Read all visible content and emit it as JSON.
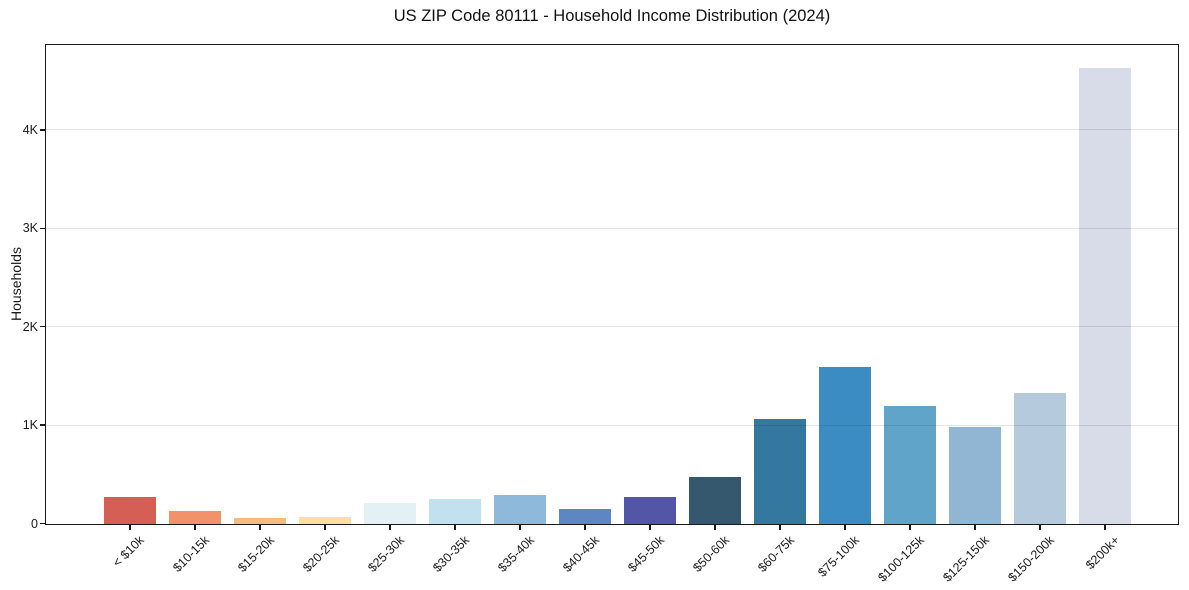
{
  "chart_data": {
    "type": "bar",
    "title": "US ZIP Code 80111 - Household Income Distribution (2024)",
    "xlabel": "",
    "ylabel": "Households",
    "categories": [
      "< $10k",
      "$10-15k",
      "$15-20k",
      "$20-25k",
      "$25-30k",
      "$30-35k",
      "$35-40k",
      "$40-45k",
      "$45-50k",
      "$50-60k",
      "$60-75k",
      "$75-100k",
      "$100-125k",
      "$125-150k",
      "$150-200k",
      "$200k+"
    ],
    "values": [
      275,
      130,
      60,
      75,
      215,
      255,
      295,
      150,
      270,
      480,
      1065,
      1595,
      1200,
      990,
      1330,
      4635
    ],
    "bar_colors": [
      "#d65f55",
      "#f2926c",
      "#f6bb7e",
      "#fde0a1",
      "#e3f1f4",
      "#c1e1ee",
      "#8fb9da",
      "#5e86c3",
      "#5356a7",
      "#35586e",
      "#35789f",
      "#3a8cc3",
      "#60a5c9",
      "#90b6d4",
      "#b6cade",
      "#d8dbe8"
    ],
    "y_tick_values": [
      0,
      1000,
      2000,
      3000,
      4000
    ],
    "y_tick_labels": [
      "0",
      "1K",
      "2K",
      "3K",
      "4K"
    ],
    "ylim": [
      0,
      4860
    ],
    "grid": "horizontal-light",
    "legend_position": "none",
    "background_color": "#ffffff",
    "spine_color": "#1a1a1a"
  }
}
